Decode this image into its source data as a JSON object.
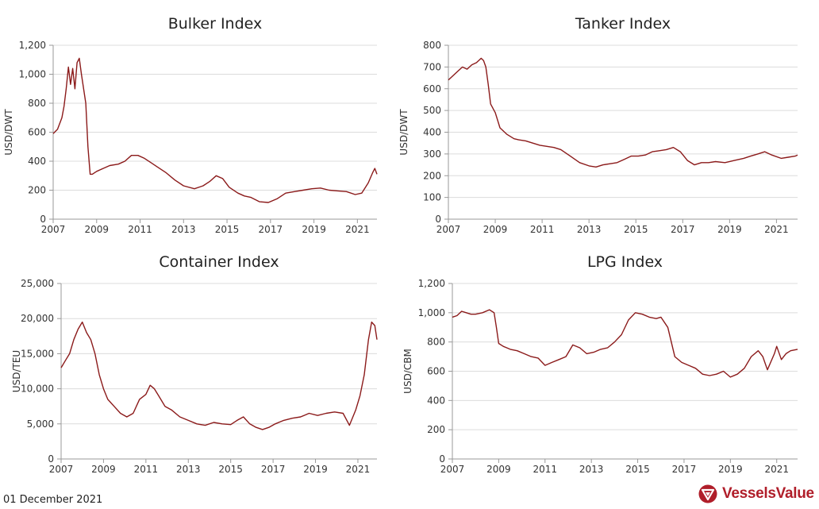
{
  "footer": {
    "date": "01 December 2021",
    "brand": "VesselsValue"
  },
  "colors": {
    "series": "#8b1a1a",
    "brand": "#b01e2a",
    "grid": "#dcdcdc"
  },
  "chart_data": [
    {
      "type": "line",
      "title": "Bulker Index",
      "ylabel": "USD/DWT",
      "xlim": [
        2007,
        2021.9
      ],
      "ylim": [
        0,
        1200
      ],
      "xticks": [
        2007,
        2009,
        2011,
        2013,
        2015,
        2017,
        2019,
        2021
      ],
      "yticks": [
        0,
        200,
        400,
        600,
        800,
        1000,
        1200
      ],
      "ytick_labels": [
        "0",
        "200",
        "400",
        "600",
        "800",
        "1,000",
        "1,200"
      ],
      "x": [
        2007.0,
        2007.2,
        2007.4,
        2007.5,
        2007.6,
        2007.7,
        2007.8,
        2007.9,
        2008.0,
        2008.1,
        2008.2,
        2008.3,
        2008.5,
        2008.6,
        2008.7,
        2008.8,
        2009.0,
        2009.3,
        2009.6,
        2010.0,
        2010.3,
        2010.6,
        2010.9,
        2011.2,
        2011.5,
        2011.8,
        2012.2,
        2012.6,
        2013.0,
        2013.5,
        2013.9,
        2014.2,
        2014.5,
        2014.8,
        2015.1,
        2015.5,
        2015.8,
        2016.1,
        2016.5,
        2016.9,
        2017.3,
        2017.7,
        2018.1,
        2018.5,
        2018.9,
        2019.3,
        2019.7,
        2020.1,
        2020.5,
        2020.9,
        2021.2,
        2021.5,
        2021.7,
        2021.8,
        2021.9
      ],
      "y": [
        590,
        620,
        700,
        780,
        900,
        1050,
        930,
        1040,
        900,
        1080,
        1110,
        1000,
        800,
        500,
        310,
        310,
        330,
        350,
        370,
        380,
        400,
        440,
        440,
        420,
        390,
        360,
        320,
        270,
        230,
        210,
        230,
        260,
        300,
        280,
        220,
        180,
        160,
        150,
        120,
        115,
        140,
        180,
        190,
        200,
        210,
        215,
        200,
        195,
        190,
        170,
        180,
        250,
        320,
        350,
        310
      ]
    },
    {
      "type": "line",
      "title": "Tanker Index",
      "ylabel": "USD/DWT",
      "xlim": [
        2007,
        2021.9
      ],
      "ylim": [
        0,
        800
      ],
      "xticks": [
        2007,
        2009,
        2011,
        2013,
        2015,
        2017,
        2019,
        2021
      ],
      "yticks": [
        0,
        100,
        200,
        300,
        400,
        500,
        600,
        700,
        800
      ],
      "ytick_labels": [
        "0",
        "100",
        "200",
        "300",
        "400",
        "500",
        "600",
        "700",
        "800"
      ],
      "x": [
        2007.0,
        2007.2,
        2007.4,
        2007.6,
        2007.8,
        2008.0,
        2008.2,
        2008.4,
        2008.5,
        2008.6,
        2008.7,
        2008.8,
        2009.0,
        2009.2,
        2009.5,
        2009.8,
        2010.0,
        2010.3,
        2010.6,
        2010.9,
        2011.2,
        2011.5,
        2011.8,
        2012.2,
        2012.6,
        2013.0,
        2013.3,
        2013.6,
        2013.9,
        2014.2,
        2014.5,
        2014.8,
        2015.1,
        2015.4,
        2015.7,
        2016.0,
        2016.3,
        2016.6,
        2016.9,
        2017.2,
        2017.5,
        2017.8,
        2018.1,
        2018.4,
        2018.8,
        2019.2,
        2019.6,
        2019.9,
        2020.2,
        2020.5,
        2020.8,
        2021.2,
        2021.5,
        2021.8,
        2021.9
      ],
      "y": [
        640,
        660,
        680,
        700,
        690,
        710,
        720,
        740,
        730,
        700,
        620,
        530,
        490,
        420,
        390,
        370,
        365,
        360,
        350,
        340,
        335,
        330,
        320,
        290,
        260,
        245,
        240,
        250,
        255,
        260,
        275,
        290,
        290,
        295,
        310,
        315,
        320,
        330,
        310,
        270,
        250,
        260,
        260,
        265,
        260,
        270,
        280,
        290,
        300,
        310,
        295,
        280,
        285,
        290,
        295
      ]
    },
    {
      "type": "line",
      "title": "Container Index",
      "ylabel": "USD/TEU",
      "xlim": [
        2007,
        2021.9
      ],
      "ylim": [
        0,
        25000
      ],
      "xticks": [
        2007,
        2009,
        2011,
        2013,
        2015,
        2017,
        2019,
        2021
      ],
      "yticks": [
        0,
        5000,
        10000,
        15000,
        20000,
        25000
      ],
      "ytick_labels": [
        "0",
        "5,000",
        "10,000",
        "15,000",
        "20,000",
        "25,000"
      ],
      "x": [
        2007.0,
        2007.2,
        2007.4,
        2007.6,
        2007.8,
        2008.0,
        2008.2,
        2008.4,
        2008.6,
        2008.8,
        2009.0,
        2009.2,
        2009.5,
        2009.8,
        2010.1,
        2010.4,
        2010.7,
        2011.0,
        2011.2,
        2011.4,
        2011.6,
        2011.9,
        2012.2,
        2012.6,
        2013.0,
        2013.4,
        2013.8,
        2014.2,
        2014.6,
        2015.0,
        2015.3,
        2015.6,
        2015.9,
        2016.2,
        2016.5,
        2016.8,
        2017.1,
        2017.5,
        2017.9,
        2018.3,
        2018.7,
        2019.1,
        2019.5,
        2019.9,
        2020.3,
        2020.6,
        2020.9,
        2021.1,
        2021.3,
        2021.5,
        2021.65,
        2021.8,
        2021.9
      ],
      "y": [
        13000,
        14000,
        15000,
        17000,
        18500,
        19500,
        18000,
        17000,
        15000,
        12000,
        10000,
        8500,
        7500,
        6500,
        6000,
        6500,
        8500,
        9200,
        10500,
        10000,
        9000,
        7500,
        7000,
        6000,
        5500,
        5000,
        4800,
        5200,
        5000,
        4900,
        5500,
        6000,
        5000,
        4500,
        4200,
        4500,
        5000,
        5500,
        5800,
        6000,
        6500,
        6200,
        6500,
        6700,
        6500,
        4800,
        7000,
        9000,
        12000,
        17000,
        19500,
        19000,
        17000
      ]
    },
    {
      "type": "line",
      "title": "LPG Index",
      "ylabel": "USD/CBM",
      "xlim": [
        2007,
        2021.9
      ],
      "ylim": [
        0,
        1200
      ],
      "xticks": [
        2007,
        2009,
        2011,
        2013,
        2015,
        2017,
        2019,
        2021
      ],
      "yticks": [
        0,
        200,
        400,
        600,
        800,
        1000,
        1200
      ],
      "ytick_labels": [
        "0",
        "200",
        "400",
        "600",
        "800",
        "1,000",
        "1,200"
      ],
      "x": [
        2007.0,
        2007.2,
        2007.4,
        2007.6,
        2007.8,
        2008.0,
        2008.3,
        2008.6,
        2008.8,
        2008.9,
        2009.0,
        2009.2,
        2009.5,
        2009.8,
        2010.1,
        2010.4,
        2010.7,
        2011.0,
        2011.3,
        2011.6,
        2011.9,
        2012.2,
        2012.5,
        2012.8,
        2013.1,
        2013.4,
        2013.7,
        2014.0,
        2014.3,
        2014.6,
        2014.9,
        2015.2,
        2015.5,
        2015.8,
        2016.0,
        2016.3,
        2016.6,
        2016.9,
        2017.2,
        2017.5,
        2017.8,
        2018.1,
        2018.4,
        2018.7,
        2019.0,
        2019.3,
        2019.6,
        2019.9,
        2020.2,
        2020.4,
        2020.6,
        2020.9,
        2021.0,
        2021.2,
        2021.4,
        2021.6,
        2021.9
      ],
      "y": [
        970,
        980,
        1010,
        1000,
        990,
        990,
        1000,
        1020,
        1000,
        900,
        790,
        770,
        750,
        740,
        720,
        700,
        690,
        640,
        660,
        680,
        700,
        780,
        760,
        720,
        730,
        750,
        760,
        800,
        850,
        950,
        1000,
        990,
        970,
        960,
        970,
        900,
        700,
        660,
        640,
        620,
        580,
        570,
        580,
        600,
        560,
        580,
        620,
        700,
        740,
        700,
        610,
        720,
        770,
        680,
        720,
        740,
        750
      ]
    }
  ]
}
